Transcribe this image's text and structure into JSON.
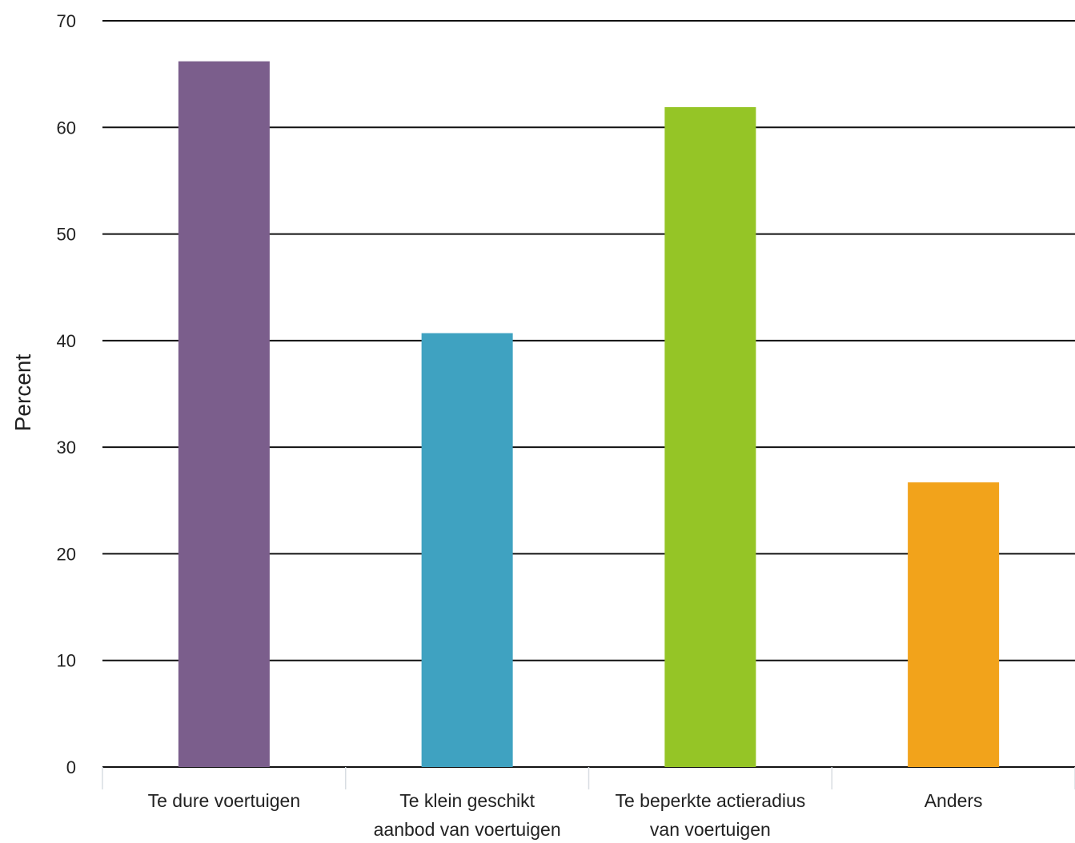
{
  "chart_data": {
    "type": "bar",
    "ylabel": "Percent",
    "xlabel": "",
    "title": "",
    "ylim": [
      0,
      70
    ],
    "yticks": [
      0,
      10,
      20,
      30,
      40,
      50,
      60,
      70
    ],
    "grid": true,
    "categories": [
      [
        "Te dure voertuigen"
      ],
      [
        "Te klein geschikt",
        "aanbod van voertuigen"
      ],
      [
        "Te beperkte actieradius",
        "van voertuigen"
      ],
      [
        "Anders"
      ]
    ],
    "values": [
      66.2,
      40.7,
      61.9,
      26.7
    ],
    "colors": [
      "#7b5e8c",
      "#3fa2c1",
      "#95c526",
      "#f2a31b"
    ]
  }
}
